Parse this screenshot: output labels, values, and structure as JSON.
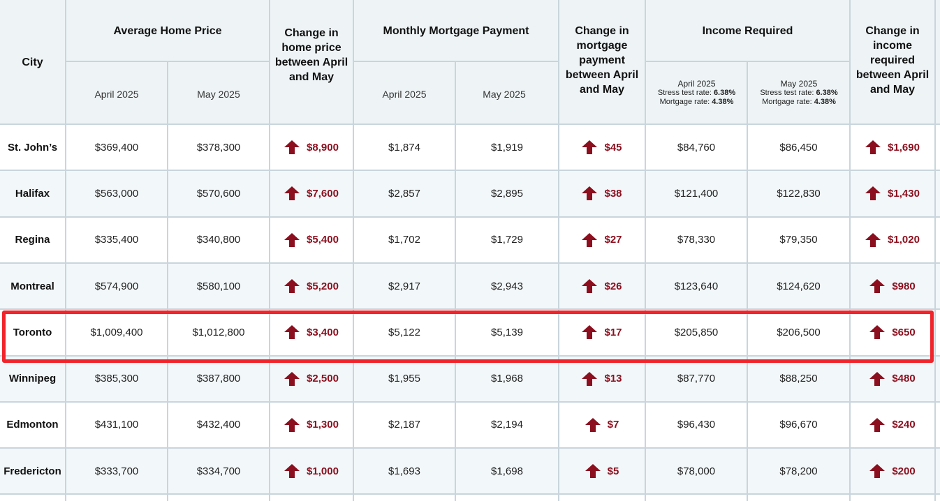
{
  "header": {
    "city": "City",
    "avg_price": "Average Home Price",
    "change_price": "Change in home price between April and May",
    "mortgage": "Monthly Mortgage Payment",
    "change_mortgage": "Change in mortgage payment between April and May",
    "income": "Income Required",
    "change_income": "Change in income required between April and May",
    "april": "April 2025",
    "may": "May 2025",
    "income_april": "April 2025",
    "income_may": "May 2025",
    "stress_label": "Stress test rate: ",
    "stress_rate": "6.38%",
    "mortgage_label": "Mortgage rate: ",
    "mortgage_rate": "4.38%"
  },
  "highlight_color": "#f0242a",
  "change_color": "#8b0f1e",
  "icons": {
    "change": "arrow-up-icon"
  },
  "rows": [
    {
      "city": "St. John’s",
      "price_apr": "$369,400",
      "price_may": "$378,300",
      "price_chg": "$8,900",
      "mort_apr": "$1,874",
      "mort_may": "$1,919",
      "mort_chg": "$45",
      "inc_apr": "$84,760",
      "inc_may": "$86,450",
      "inc_chg": "$1,690"
    },
    {
      "city": "Halifax",
      "price_apr": "$563,000",
      "price_may": "$570,600",
      "price_chg": "$7,600",
      "mort_apr": "$2,857",
      "mort_may": "$2,895",
      "mort_chg": "$38",
      "inc_apr": "$121,400",
      "inc_may": "$122,830",
      "inc_chg": "$1,430"
    },
    {
      "city": "Regina",
      "price_apr": "$335,400",
      "price_may": "$340,800",
      "price_chg": "$5,400",
      "mort_apr": "$1,702",
      "mort_may": "$1,729",
      "mort_chg": "$27",
      "inc_apr": "$78,330",
      "inc_may": "$79,350",
      "inc_chg": "$1,020"
    },
    {
      "city": "Montreal",
      "price_apr": "$574,900",
      "price_may": "$580,100",
      "price_chg": "$5,200",
      "mort_apr": "$2,917",
      "mort_may": "$2,943",
      "mort_chg": "$26",
      "inc_apr": "$123,640",
      "inc_may": "$124,620",
      "inc_chg": "$980"
    },
    {
      "city": "Toronto",
      "price_apr": "$1,009,400",
      "price_may": "$1,012,800",
      "price_chg": "$3,400",
      "mort_apr": "$5,122",
      "mort_may": "$5,139",
      "mort_chg": "$17",
      "inc_apr": "$205,850",
      "inc_may": "$206,500",
      "inc_chg": "$650",
      "highlighted": true
    },
    {
      "city": "Winnipeg",
      "price_apr": "$385,300",
      "price_may": "$387,800",
      "price_chg": "$2,500",
      "mort_apr": "$1,955",
      "mort_may": "$1,968",
      "mort_chg": "$13",
      "inc_apr": "$87,770",
      "inc_may": "$88,250",
      "inc_chg": "$480"
    },
    {
      "city": "Edmonton",
      "price_apr": "$431,100",
      "price_may": "$432,400",
      "price_chg": "$1,300",
      "mort_apr": "$2,187",
      "mort_may": "$2,194",
      "mort_chg": "$7",
      "inc_apr": "$96,430",
      "inc_may": "$96,670",
      "inc_chg": "$240"
    },
    {
      "city": "Fredericton",
      "price_apr": "$333,700",
      "price_may": "$334,700",
      "price_chg": "$1,000",
      "mort_apr": "$1,693",
      "mort_may": "$1,698",
      "mort_chg": "$5",
      "inc_apr": "$78,000",
      "inc_may": "$78,200",
      "inc_chg": "$200"
    }
  ]
}
